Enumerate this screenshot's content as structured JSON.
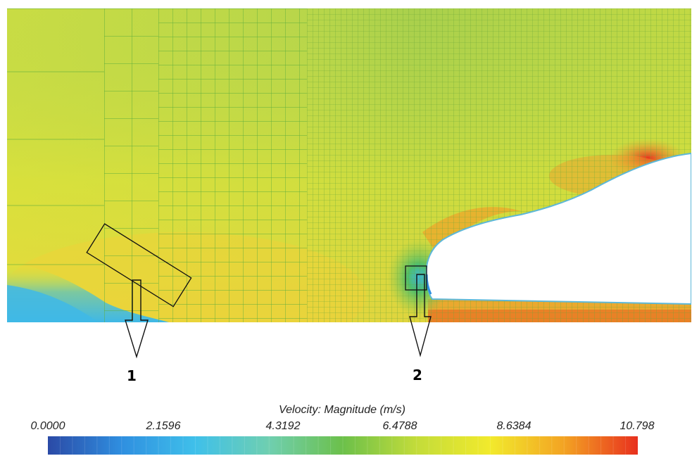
{
  "figure": {
    "markers": [
      {
        "id": "1",
        "label": "1"
      },
      {
        "id": "2",
        "label": "2"
      }
    ]
  },
  "colorbar": {
    "title": "Velocity: Magnitude (m/s)",
    "min": 0.0,
    "max": 10.798,
    "tick_labels": [
      "0.0000",
      "2.1596",
      "4.3192",
      "6.4788",
      "8.6384",
      "10.798"
    ],
    "colors": [
      "#2b4aa6",
      "#2f8fe0",
      "#3fc0ea",
      "#6fcfb0",
      "#6cc04a",
      "#c3dc3a",
      "#f2ea2c",
      "#f3a323",
      "#e8301e"
    ]
  }
}
